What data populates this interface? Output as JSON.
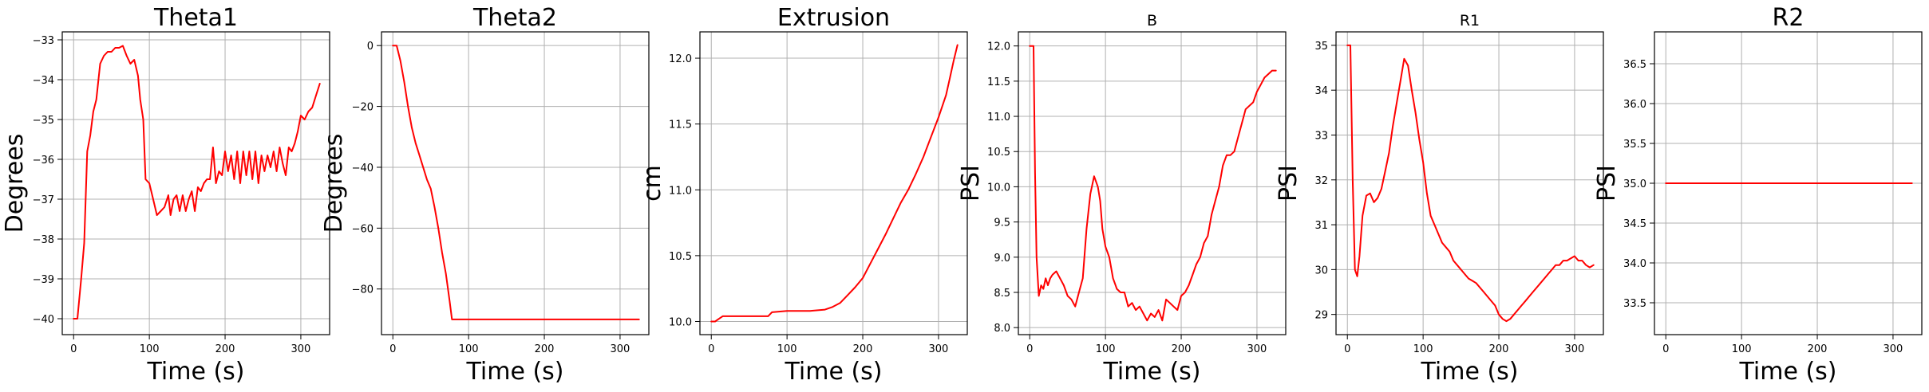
{
  "chart_data": [
    {
      "type": "line",
      "title": "Theta1",
      "xlabel": "Time (s)",
      "ylabel": "Degrees",
      "xlim": [
        -15,
        338
      ],
      "ylim": [
        -40.4,
        -32.8
      ],
      "xticks": [
        0,
        100,
        200,
        300
      ],
      "yticks": [
        -40,
        -39,
        -38,
        -37,
        -36,
        -35,
        -34,
        -33
      ],
      "grid": true,
      "color": "#ff0000",
      "x": [
        0,
        5,
        10,
        14,
        18,
        22,
        26,
        30,
        35,
        40,
        45,
        50,
        55,
        60,
        65,
        70,
        75,
        80,
        85,
        88,
        92,
        95,
        100,
        105,
        110,
        115,
        120,
        125,
        128,
        132,
        136,
        140,
        144,
        148,
        152,
        156,
        160,
        164,
        168,
        172,
        176,
        180,
        184,
        188,
        192,
        196,
        200,
        204,
        208,
        212,
        216,
        220,
        224,
        228,
        232,
        236,
        240,
        244,
        248,
        252,
        256,
        260,
        264,
        268,
        272,
        276,
        280,
        284,
        288,
        292,
        296,
        300,
        305,
        310,
        315,
        320,
        325
      ],
      "y": [
        -40,
        -40,
        -39,
        -38.1,
        -35.8,
        -35.4,
        -34.8,
        -34.5,
        -33.6,
        -33.4,
        -33.3,
        -33.3,
        -33.2,
        -33.2,
        -33.15,
        -33.4,
        -33.6,
        -33.5,
        -33.9,
        -34.5,
        -35.0,
        -36.5,
        -36.6,
        -37.0,
        -37.4,
        -37.3,
        -37.2,
        -36.9,
        -37.4,
        -37.0,
        -36.9,
        -37.3,
        -36.9,
        -37.3,
        -37.0,
        -36.8,
        -37.3,
        -36.7,
        -36.8,
        -36.6,
        -36.5,
        -36.5,
        -35.7,
        -36.6,
        -36.3,
        -36.4,
        -35.8,
        -36.3,
        -35.9,
        -36.5,
        -35.8,
        -36.6,
        -35.8,
        -36.4,
        -35.8,
        -36.5,
        -35.8,
        -36.6,
        -35.9,
        -36.3,
        -35.9,
        -36.2,
        -35.8,
        -36.3,
        -35.7,
        -36.1,
        -36.4,
        -35.7,
        -35.8,
        -35.6,
        -35.3,
        -34.9,
        -35.0,
        -34.8,
        -34.7,
        -34.4,
        -34.1
      ]
    },
    {
      "type": "line",
      "title": "Theta2",
      "xlabel": "Time (s)",
      "ylabel": "Degrees",
      "xlim": [
        -15,
        338
      ],
      "ylim": [
        -95,
        4.5
      ],
      "xticks": [
        0,
        100,
        200,
        300
      ],
      "yticks": [
        0,
        -20,
        -40,
        -60,
        -80
      ],
      "grid": true,
      "color": "#ff0000",
      "x": [
        0,
        5,
        10,
        15,
        20,
        25,
        30,
        35,
        40,
        45,
        50,
        55,
        60,
        65,
        70,
        75,
        78,
        80,
        90,
        100,
        150,
        200,
        250,
        300,
        325
      ],
      "y": [
        0,
        0,
        -5,
        -12,
        -20,
        -27,
        -32,
        -36,
        -40,
        -44,
        -47,
        -53,
        -60,
        -68,
        -75,
        -84,
        -90,
        -90,
        -90,
        -90,
        -90,
        -90,
        -90,
        -90,
        -90
      ]
    },
    {
      "type": "line",
      "title": "Extrusion",
      "xlabel": "Time (s)",
      "ylabel": "cm",
      "xlim": [
        -15,
        338
      ],
      "ylim": [
        9.9,
        12.2
      ],
      "xticks": [
        0,
        100,
        200,
        300
      ],
      "yticks": [
        10.0,
        10.5,
        11.0,
        11.5,
        12.0
      ],
      "grid": true,
      "color": "#ff0000",
      "x": [
        0,
        5,
        10,
        15,
        40,
        60,
        75,
        80,
        100,
        130,
        150,
        160,
        170,
        180,
        190,
        200,
        210,
        220,
        230,
        240,
        250,
        260,
        270,
        280,
        290,
        300,
        310,
        315,
        320,
        325
      ],
      "y": [
        10.0,
        10.0,
        10.02,
        10.04,
        10.04,
        10.04,
        10.04,
        10.07,
        10.08,
        10.08,
        10.09,
        10.11,
        10.14,
        10.2,
        10.26,
        10.33,
        10.44,
        10.55,
        10.66,
        10.78,
        10.9,
        11.0,
        11.12,
        11.25,
        11.4,
        11.55,
        11.72,
        11.85,
        11.98,
        12.1
      ]
    },
    {
      "type": "line",
      "title": "B",
      "xlabel": "Time (s)",
      "ylabel": "PSI",
      "xlim": [
        -15,
        338
      ],
      "ylim": [
        7.9,
        12.2
      ],
      "xticks": [
        0,
        100,
        200,
        300
      ],
      "yticks": [
        8.0,
        8.5,
        9.0,
        9.5,
        10.0,
        10.5,
        11.0,
        11.5,
        12.0
      ],
      "grid": true,
      "color": "#ff0000",
      "x": [
        0,
        5,
        7,
        9,
        12,
        15,
        18,
        21,
        24,
        27,
        30,
        35,
        40,
        45,
        50,
        55,
        60,
        65,
        70,
        75,
        80,
        85,
        90,
        93,
        96,
        100,
        105,
        110,
        115,
        120,
        125,
        130,
        135,
        140,
        145,
        150,
        155,
        160,
        165,
        170,
        175,
        180,
        185,
        190,
        195,
        200,
        205,
        210,
        215,
        220,
        225,
        230,
        235,
        240,
        245,
        250,
        255,
        260,
        265,
        270,
        275,
        280,
        285,
        290,
        295,
        300,
        305,
        310,
        315,
        320,
        325
      ],
      "y": [
        12,
        12,
        10.2,
        9.0,
        8.45,
        8.6,
        8.55,
        8.7,
        8.6,
        8.7,
        8.75,
        8.8,
        8.7,
        8.6,
        8.45,
        8.4,
        8.3,
        8.5,
        8.7,
        9.4,
        9.9,
        10.15,
        10.0,
        9.8,
        9.4,
        9.15,
        9.0,
        8.7,
        8.55,
        8.5,
        8.5,
        8.3,
        8.35,
        8.25,
        8.3,
        8.2,
        8.1,
        8.2,
        8.15,
        8.25,
        8.1,
        8.4,
        8.35,
        8.3,
        8.25,
        8.45,
        8.5,
        8.6,
        8.75,
        8.9,
        9.0,
        9.2,
        9.3,
        9.6,
        9.8,
        10.0,
        10.3,
        10.45,
        10.45,
        10.5,
        10.7,
        10.9,
        11.1,
        11.15,
        11.2,
        11.35,
        11.45,
        11.55,
        11.6,
        11.65,
        11.65
      ]
    },
    {
      "type": "line",
      "title": "R1",
      "xlabel": "Time (s)",
      "ylabel": "PSI",
      "xlim": [
        -15,
        338
      ],
      "ylim": [
        28.55,
        35.3
      ],
      "xticks": [
        0,
        100,
        200,
        300
      ],
      "yticks": [
        29,
        30,
        31,
        32,
        33,
        34,
        35
      ],
      "grid": true,
      "color": "#ff0000",
      "x": [
        0,
        4,
        7,
        10,
        13,
        16,
        20,
        25,
        30,
        35,
        40,
        45,
        50,
        55,
        60,
        65,
        70,
        75,
        80,
        85,
        90,
        95,
        100,
        105,
        110,
        115,
        120,
        125,
        130,
        135,
        140,
        145,
        150,
        155,
        160,
        165,
        170,
        175,
        180,
        185,
        190,
        195,
        200,
        205,
        210,
        215,
        220,
        225,
        230,
        235,
        240,
        245,
        250,
        255,
        260,
        265,
        270,
        275,
        280,
        285,
        290,
        295,
        300,
        305,
        310,
        315,
        320,
        325
      ],
      "y": [
        35,
        35,
        32,
        30.0,
        29.85,
        30.3,
        31.2,
        31.65,
        31.7,
        31.5,
        31.6,
        31.8,
        32.2,
        32.6,
        33.2,
        33.7,
        34.2,
        34.7,
        34.55,
        34.0,
        33.5,
        32.9,
        32.4,
        31.7,
        31.2,
        31.0,
        30.8,
        30.6,
        30.5,
        30.4,
        30.2,
        30.1,
        30.0,
        29.9,
        29.8,
        29.75,
        29.7,
        29.6,
        29.5,
        29.4,
        29.3,
        29.2,
        29.0,
        28.9,
        28.85,
        28.9,
        29.0,
        29.1,
        29.2,
        29.3,
        29.4,
        29.5,
        29.6,
        29.7,
        29.8,
        29.9,
        30.0,
        30.1,
        30.1,
        30.2,
        30.2,
        30.25,
        30.3,
        30.2,
        30.2,
        30.1,
        30.05,
        30.1
      ]
    },
    {
      "type": "line",
      "title": "R2",
      "xlabel": "Time (s)",
      "ylabel": "PSI",
      "xlim": [
        -15,
        338
      ],
      "ylim": [
        33.1,
        36.9
      ],
      "xticks": [
        0,
        100,
        200,
        300
      ],
      "yticks": [
        33.5,
        34.0,
        34.5,
        35.0,
        35.5,
        36.0,
        36.5
      ],
      "grid": true,
      "color": "#ff0000",
      "x": [
        0,
        325
      ],
      "y": [
        35,
        35
      ]
    }
  ]
}
